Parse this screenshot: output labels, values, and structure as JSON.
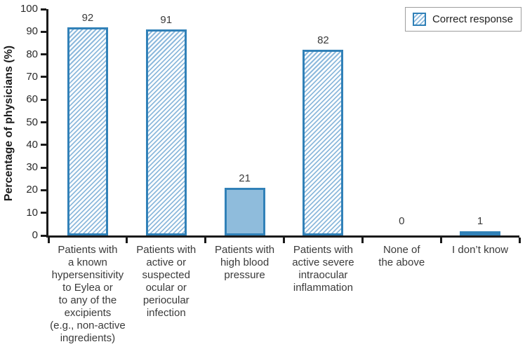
{
  "chart_data": {
    "type": "bar",
    "title": "",
    "xlabel": "",
    "ylabel": "Percentage of physicians (%)",
    "ylim": [
      0,
      100
    ],
    "yticks": [
      0,
      10,
      20,
      30,
      40,
      50,
      60,
      70,
      80,
      90,
      100
    ],
    "grid": false,
    "categories": [
      "Patients with a known hypersensitivity to Eylea or to any of the excipients (e.g., non-active ingredients)",
      "Patients with active or suspected ocular or periocular infection",
      "Patients with high blood pressure",
      "Patients with active severe intraocular inflammation",
      "None of the above",
      "I don’t know"
    ],
    "category_lines": [
      [
        "Patients with",
        "a known",
        "hypersensitivity",
        "to Eylea or",
        "to any of the",
        "excipients",
        "(e.g., non-active",
        "ingredients)"
      ],
      [
        "Patients with",
        "active or",
        "suspected",
        "ocular or",
        "periocular",
        "infection"
      ],
      [
        "Patients with",
        "high blood",
        "pressure"
      ],
      [
        "Patients with",
        "active severe",
        "intraocular",
        "inflammation"
      ],
      [
        "None of",
        "the above"
      ],
      [
        "I don’t know"
      ]
    ],
    "values": [
      92,
      91,
      21,
      82,
      0,
      1
    ],
    "value_labels": [
      "92",
      "91",
      "21",
      "82",
      "0",
      "1"
    ],
    "bar_styles": [
      "hatched",
      "hatched",
      "solid",
      "hatched",
      "none",
      "solid"
    ],
    "legend": [
      {
        "label": "Correct response",
        "swatch": "hatched"
      }
    ],
    "legend_position": "top-right"
  },
  "colors": {
    "background": "#ffffff",
    "axis": "#1a1a1a",
    "text": "#3a3a3a",
    "bar_border": "#3181b8",
    "solid_fill": "#8fbcdc",
    "hatch_stripe": "#8db9dc",
    "hatch_bg": "#ffffff",
    "legend_border": "#9e9e9e"
  }
}
